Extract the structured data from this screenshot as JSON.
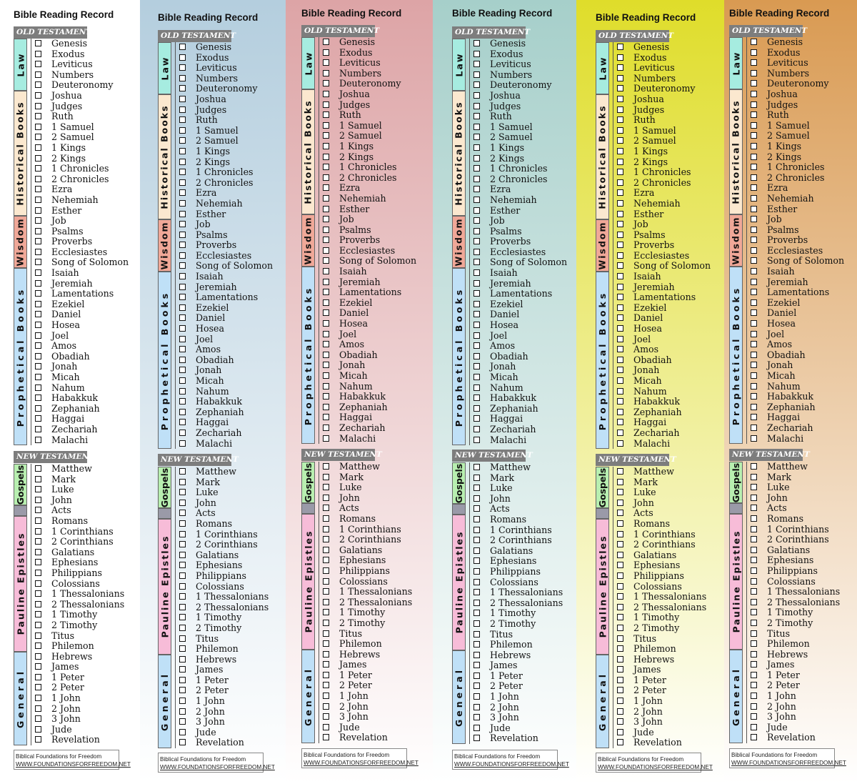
{
  "title": "Bible Reading Record",
  "old_testament_label": "OLD TESTAMENT",
  "new_testament_label": "NEW TESTAMENT",
  "footer": {
    "org": "Biblical Foundations for Freedom",
    "url": "WWW.FOUNDATIONSFORFREEDOM.NET"
  },
  "categories": {
    "law": "Law",
    "historical": "Historical Books",
    "wisdom": "Wisdom",
    "prophetical": "Prophetical Books",
    "gospels": "Gospels",
    "pauline": "Pauline Epistles",
    "general": "General"
  },
  "old_testament_books": [
    "Genesis",
    "Exodus",
    "Leviticus",
    "Numbers",
    "Deuteronomy",
    "Joshua",
    "Judges",
    "Ruth",
    "1 Samuel",
    "2 Samuel",
    "1 Kings",
    "2 Kings",
    "1 Chronicles",
    "2 Chronicles",
    "Ezra",
    "Nehemiah",
    "Esther",
    "Job",
    "Psalms",
    "Proverbs",
    "Ecclesiastes",
    "Song of Solomon",
    "Isaiah",
    "Jeremiah",
    "Lamentations",
    "Ezekiel",
    "Daniel",
    "Hosea",
    "Joel",
    "Amos",
    "Obadiah",
    "Jonah",
    "Micah",
    "Nahum",
    "Habakkuk",
    "Zephaniah",
    "Haggai",
    "Zechariah",
    "Malachi"
  ],
  "new_testament_books": [
    "Matthew",
    "Mark",
    "Luke",
    "John",
    "Acts",
    "Romans",
    "1 Corinthians",
    "2 Corinthians",
    "Galatians",
    "Ephesians",
    "Philippians",
    "Colossians",
    "1 Thessalonians",
    "2 Thessalonians",
    "1 Timothy",
    "2 Timothy",
    "Titus",
    "Philemon",
    "Hebrews",
    "James",
    "1 Peter",
    "2 Peter",
    "1 John",
    "2 John",
    "3 John",
    "Jude",
    "Revelation"
  ],
  "colors": {
    "law": "#a6ece0",
    "historical": "#fbe8cf",
    "wisdom": "#f0a898",
    "prophetical": "#bfe0f7",
    "gospels": "#b8efb0",
    "acts": "#9a9aa8",
    "pauline": "#f7bcd8",
    "general": "#bfe0f7",
    "section_bar": "#7d7d7d"
  },
  "panel_backgrounds": [
    "#ffffff",
    "linear-gradient(#b4cede 0%, #ffffff 100%)",
    "linear-gradient(#dda4a6 0%, #ffffff 100%)",
    "linear-gradient(#a6cfca 0%, #ffffff 100%)",
    "linear-gradient(#dfdd2a 0%, #ffffff 100%)",
    "linear-gradient(#d99a52 0%, #ffffff 100%)"
  ]
}
